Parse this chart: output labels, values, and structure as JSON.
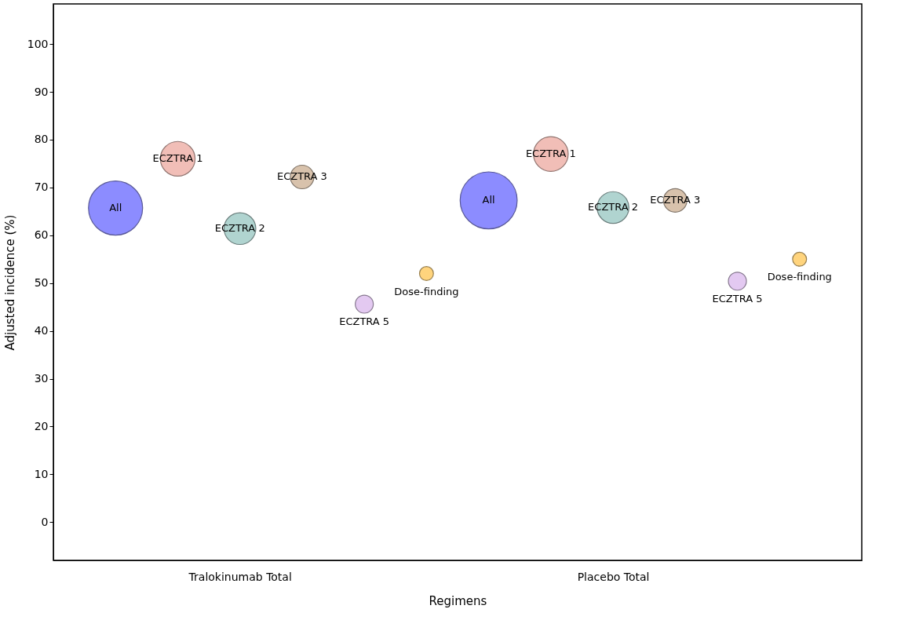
{
  "chart_data": {
    "type": "bubble",
    "xlabel": "Regimens",
    "ylabel": "Adjusted incidence (%)",
    "categories": [
      null,
      null,
      "Tralokinumab Total",
      null,
      null,
      null,
      null,
      null,
      "Placebo Total",
      null,
      null,
      null
    ],
    "ylim": [
      -8,
      108.4
    ],
    "yticks": [
      0,
      10,
      20,
      30,
      40,
      50,
      60,
      70,
      80,
      90,
      100
    ],
    "grid": false,
    "legend": false,
    "marker": "circle",
    "series": [
      {
        "name": "All",
        "color": "#8080ff",
        "values": [
          65.7,
          null,
          null,
          null,
          null,
          null,
          67.3,
          null,
          null,
          null,
          null,
          null
        ],
        "sizes": [
          0.9,
          null,
          null,
          null,
          null,
          null,
          1,
          null,
          null,
          null,
          null,
          null
        ]
      },
      {
        "name": "ECZTRA 1",
        "color": "#f0b8b0",
        "values": [
          null,
          76,
          null,
          null,
          null,
          null,
          null,
          77,
          null,
          null,
          null,
          null
        ],
        "sizes": [
          null,
          0.37,
          null,
          null,
          null,
          null,
          null,
          0.37,
          null,
          null,
          null,
          null
        ]
      },
      {
        "name": "ECZTRA 2",
        "color": "#a8d0cc",
        "values": [
          null,
          null,
          61.4,
          null,
          null,
          null,
          null,
          null,
          65.8,
          null,
          null,
          null
        ],
        "sizes": [
          null,
          null,
          0.31,
          null,
          null,
          null,
          null,
          null,
          0.31,
          null,
          null,
          null
        ]
      },
      {
        "name": "ECZTRA 3",
        "color": "#d4bca4",
        "values": [
          null,
          null,
          null,
          72.2,
          null,
          null,
          null,
          null,
          null,
          67.3,
          null,
          null
        ],
        "sizes": [
          null,
          null,
          null,
          0.17,
          null,
          null,
          null,
          null,
          null,
          0.17,
          null,
          null
        ]
      },
      {
        "name": "ECZTRA 5",
        "color": "#e0c4f0",
        "values": [
          null,
          null,
          null,
          null,
          45.6,
          null,
          null,
          null,
          null,
          null,
          50.4,
          null
        ],
        "sizes": [
          null,
          null,
          null,
          null,
          0.1,
          null,
          null,
          null,
          null,
          null,
          0.1,
          null
        ]
      },
      {
        "name": "Dose-finding",
        "color": "#ffd070",
        "values": [
          null,
          null,
          null,
          null,
          null,
          52,
          null,
          null,
          null,
          null,
          null,
          55
        ],
        "sizes": [
          null,
          null,
          null,
          null,
          null,
          0.06,
          null,
          null,
          null,
          null,
          null,
          0.06
        ]
      }
    ]
  }
}
